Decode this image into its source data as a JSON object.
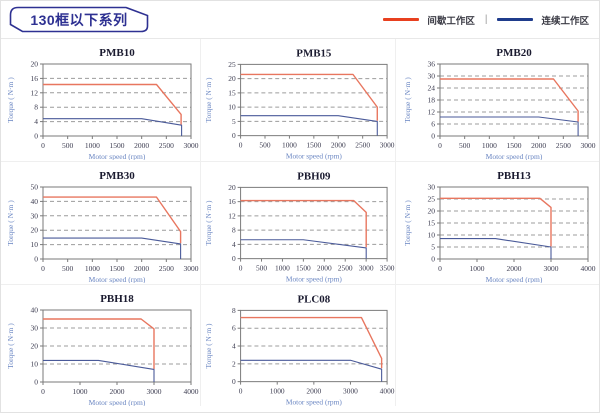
{
  "header": {
    "title": "130框以下系列",
    "legend": {
      "intermittent": "间歇工作区",
      "separator": "|",
      "continuous": "连续工作区"
    }
  },
  "axis": {
    "xlabel": "Motor speed (rpm)",
    "ylabel": "Torque ( N·m )"
  },
  "style": {
    "accent": "#2e3192",
    "legend_red": "#e8401f",
    "legend_blue": "#1f3c8c",
    "red_line": "#e8765f",
    "blue_line": "#4a5a99",
    "grid": "#9c9c9c",
    "frame": "#7a7a7a"
  },
  "chart_data": [
    {
      "type": "line",
      "title": "PMB10",
      "xlim": [
        0,
        3000
      ],
      "xticks": [
        0,
        500,
        1000,
        1500,
        2000,
        2500,
        3000
      ],
      "ylim": [
        0,
        20
      ],
      "yticks": [
        0,
        4,
        8,
        12,
        16,
        20
      ],
      "series": [
        {
          "name": "间歇工作区",
          "points": [
            [
              0,
              14.3
            ],
            [
              2300,
              14.3
            ],
            [
              2800,
              6
            ],
            [
              2800,
              3.2
            ]
          ]
        },
        {
          "name": "连续工作区",
          "points": [
            [
              0,
              4.8
            ],
            [
              2000,
              4.8
            ],
            [
              2810,
              3
            ],
            [
              2810,
              0
            ]
          ]
        }
      ]
    },
    {
      "type": "line",
      "title": "PMB15",
      "xlim": [
        0,
        3000
      ],
      "xticks": [
        0,
        500,
        1000,
        1500,
        2000,
        2500,
        3000
      ],
      "ylim": [
        0,
        25
      ],
      "yticks": [
        0,
        5,
        10,
        15,
        20,
        25
      ],
      "series": [
        {
          "name": "间歇工作区",
          "points": [
            [
              0,
              21.5
            ],
            [
              2300,
              21.5
            ],
            [
              2800,
              10
            ],
            [
              2800,
              5.2
            ]
          ]
        },
        {
          "name": "连续工作区",
          "points": [
            [
              0,
              7
            ],
            [
              2000,
              7
            ],
            [
              2800,
              5
            ],
            [
              2800,
              0
            ]
          ]
        }
      ]
    },
    {
      "type": "line",
      "title": "PMB20",
      "xlim": [
        0,
        3000
      ],
      "xticks": [
        0,
        500,
        1000,
        1500,
        2000,
        2500,
        3000
      ],
      "ylim": [
        0,
        36
      ],
      "yticks": [
        0,
        6,
        12,
        18,
        24,
        30,
        36
      ],
      "series": [
        {
          "name": "间歇工作区",
          "points": [
            [
              0,
              28.5
            ],
            [
              2300,
              28.5
            ],
            [
              2800,
              12.5
            ],
            [
              2800,
              7.2
            ]
          ]
        },
        {
          "name": "连续工作区",
          "points": [
            [
              0,
              9.5
            ],
            [
              2000,
              9.5
            ],
            [
              2800,
              7
            ],
            [
              2800,
              0
            ]
          ]
        }
      ]
    },
    {
      "type": "line",
      "title": "PMB30",
      "xlim": [
        0,
        3000
      ],
      "xticks": [
        0,
        500,
        1000,
        1500,
        2000,
        2500,
        3000
      ],
      "ylim": [
        0,
        50
      ],
      "yticks": [
        0,
        10,
        20,
        30,
        40,
        50
      ],
      "series": [
        {
          "name": "间歇工作区",
          "points": [
            [
              0,
              43
            ],
            [
              2300,
              43
            ],
            [
              2790,
              19
            ],
            [
              2790,
              11
            ]
          ]
        },
        {
          "name": "连续工作区",
          "points": [
            [
              0,
              14.5
            ],
            [
              2000,
              14.5
            ],
            [
              2790,
              10.5
            ],
            [
              2790,
              0
            ]
          ]
        }
      ]
    },
    {
      "type": "line",
      "title": "PBH09",
      "xlim": [
        0,
        3500
      ],
      "xticks": [
        0,
        500,
        1000,
        1500,
        2000,
        2500,
        3000,
        3500
      ],
      "ylim": [
        0,
        20
      ],
      "yticks": [
        0,
        4,
        8,
        12,
        16,
        20
      ],
      "series": [
        {
          "name": "间歇工作区",
          "points": [
            [
              0,
              16.3
            ],
            [
              2700,
              16.3
            ],
            [
              3000,
              13
            ],
            [
              3000,
              3.2
            ]
          ]
        },
        {
          "name": "连续工作区",
          "points": [
            [
              0,
              5.3
            ],
            [
              1500,
              5.3
            ],
            [
              3000,
              3
            ],
            [
              3000,
              0
            ]
          ]
        }
      ]
    },
    {
      "type": "line",
      "title": "PBH13",
      "xlim": [
        0,
        4000
      ],
      "xticks": [
        0,
        1000,
        2000,
        3000,
        4000
      ],
      "ylim": [
        0,
        30
      ],
      "yticks": [
        0,
        5,
        10,
        15,
        20,
        25,
        30
      ],
      "series": [
        {
          "name": "间歇工作区",
          "points": [
            [
              0,
              25.3
            ],
            [
              2700,
              25.3
            ],
            [
              3000,
              21.5
            ],
            [
              3000,
              5.2
            ]
          ]
        },
        {
          "name": "连续工作区",
          "points": [
            [
              0,
              8.5
            ],
            [
              1500,
              8.5
            ],
            [
              3000,
              5
            ],
            [
              3000,
              0
            ]
          ]
        }
      ]
    },
    {
      "type": "line",
      "title": "PBH18",
      "xlim": [
        0,
        4000
      ],
      "xticks": [
        0,
        1000,
        2000,
        3000,
        4000
      ],
      "ylim": [
        0,
        40
      ],
      "yticks": [
        0,
        10,
        20,
        30,
        40
      ],
      "series": [
        {
          "name": "间歇工作区",
          "points": [
            [
              0,
              35
            ],
            [
              2650,
              35
            ],
            [
              3000,
              29.5
            ],
            [
              3000,
              7.2
            ]
          ]
        },
        {
          "name": "连续工作区",
          "points": [
            [
              0,
              12
            ],
            [
              1500,
              12
            ],
            [
              3000,
              7
            ],
            [
              3000,
              0
            ]
          ]
        }
      ]
    },
    {
      "type": "line",
      "title": "PLC08",
      "xlim": [
        0,
        4000
      ],
      "xticks": [
        0,
        1000,
        2000,
        3000,
        4000
      ],
      "ylim": [
        0,
        8
      ],
      "yticks": [
        0,
        2,
        4,
        6,
        8
      ],
      "series": [
        {
          "name": "间歇工作区",
          "points": [
            [
              0,
              7.2
            ],
            [
              3300,
              7.2
            ],
            [
              3850,
              2.6
            ],
            [
              3850,
              1.5
            ]
          ]
        },
        {
          "name": "连续工作区",
          "points": [
            [
              0,
              2.4
            ],
            [
              3000,
              2.4
            ],
            [
              3850,
              1.4
            ],
            [
              3850,
              0
            ]
          ]
        }
      ]
    }
  ]
}
